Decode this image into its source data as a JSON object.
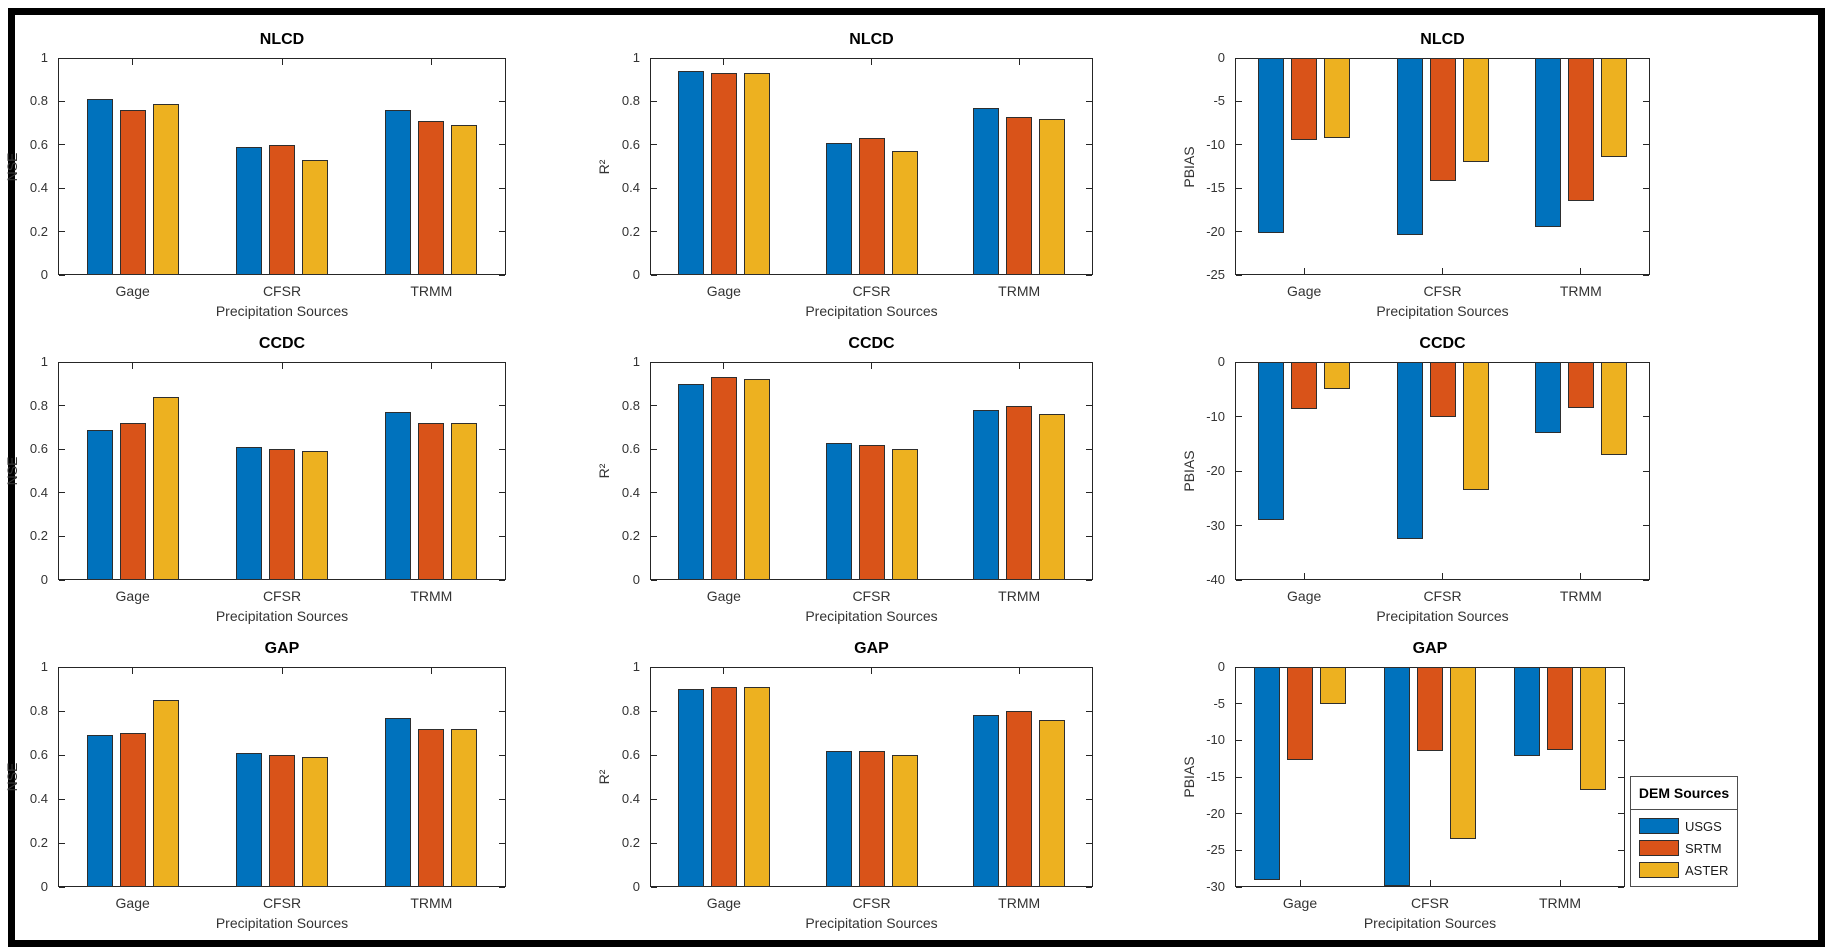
{
  "figure": {
    "background": "#ffffff",
    "frame_color": "#000000",
    "axis_color": "#262626",
    "bar_edge_color": "#2e2e2e"
  },
  "legend": {
    "title": "DEM Sources",
    "position": "outside-bottom-right",
    "entries": [
      {
        "label": "USGS",
        "color": "#0072BD"
      },
      {
        "label": "SRTM",
        "color": "#D95319"
      },
      {
        "label": "ASTER",
        "color": "#EDB120"
      }
    ]
  },
  "chart_data": [
    {
      "type": "bar",
      "title": "NLCD",
      "ylabel": "NSE",
      "xlabel": "Precipitation Sources",
      "categories": [
        "Gage",
        "CFSR",
        "TRMM"
      ],
      "series": [
        {
          "name": "USGS",
          "values": [
            0.81,
            0.59,
            0.76
          ]
        },
        {
          "name": "SRTM",
          "values": [
            0.76,
            0.6,
            0.71
          ]
        },
        {
          "name": "ASTER",
          "values": [
            0.79,
            0.53,
            0.69
          ]
        }
      ],
      "ylim": [
        0,
        1
      ],
      "yticks": [
        0,
        0.2,
        0.4,
        0.6,
        0.8,
        1
      ],
      "grid": false
    },
    {
      "type": "bar",
      "title": "NLCD",
      "ylabel": "R²",
      "xlabel": "Precipitation Sources",
      "categories": [
        "Gage",
        "CFSR",
        "TRMM"
      ],
      "series": [
        {
          "name": "USGS",
          "values": [
            0.94,
            0.61,
            0.77
          ]
        },
        {
          "name": "SRTM",
          "values": [
            0.93,
            0.63,
            0.73
          ]
        },
        {
          "name": "ASTER",
          "values": [
            0.93,
            0.57,
            0.72
          ]
        }
      ],
      "ylim": [
        0,
        1
      ],
      "yticks": [
        0,
        0.2,
        0.4,
        0.6,
        0.8,
        1
      ],
      "grid": false
    },
    {
      "type": "bar",
      "title": "NLCD",
      "ylabel": "PBIAS",
      "xlabel": "Precipitation Sources",
      "categories": [
        "Gage",
        "CFSR",
        "TRMM"
      ],
      "series": [
        {
          "name": "USGS",
          "values": [
            -20.2,
            -20.4,
            -19.5
          ]
        },
        {
          "name": "SRTM",
          "values": [
            -9.5,
            -14.2,
            -16.5
          ]
        },
        {
          "name": "ASTER",
          "values": [
            -9.2,
            -12.0,
            -11.4
          ]
        }
      ],
      "ylim": [
        -25,
        0
      ],
      "yticks": [
        0,
        -5,
        -10,
        -15,
        -20,
        -25
      ],
      "grid": false
    },
    {
      "type": "bar",
      "title": "CCDC",
      "ylabel": "NSE",
      "xlabel": "Precipitation Sources",
      "categories": [
        "Gage",
        "CFSR",
        "TRMM"
      ],
      "series": [
        {
          "name": "USGS",
          "values": [
            0.69,
            0.61,
            0.77
          ]
        },
        {
          "name": "SRTM",
          "values": [
            0.72,
            0.6,
            0.72
          ]
        },
        {
          "name": "ASTER",
          "values": [
            0.84,
            0.59,
            0.72
          ]
        }
      ],
      "ylim": [
        0,
        1
      ],
      "yticks": [
        0,
        0.2,
        0.4,
        0.6,
        0.8,
        1
      ],
      "grid": false
    },
    {
      "type": "bar",
      "title": "CCDC",
      "ylabel": "R²",
      "xlabel": "Precipitation Sources",
      "categories": [
        "Gage",
        "CFSR",
        "TRMM"
      ],
      "series": [
        {
          "name": "USGS",
          "values": [
            0.9,
            0.63,
            0.78
          ]
        },
        {
          "name": "SRTM",
          "values": [
            0.93,
            0.62,
            0.8
          ]
        },
        {
          "name": "ASTER",
          "values": [
            0.92,
            0.6,
            0.76
          ]
        }
      ],
      "ylim": [
        0,
        1
      ],
      "yticks": [
        0,
        0.2,
        0.4,
        0.6,
        0.8,
        1
      ],
      "grid": false
    },
    {
      "type": "bar",
      "title": "CCDC",
      "ylabel": "PBIAS",
      "xlabel": "Precipitation Sources",
      "categories": [
        "Gage",
        "CFSR",
        "TRMM"
      ],
      "series": [
        {
          "name": "USGS",
          "values": [
            -29.0,
            -32.5,
            -13.0
          ]
        },
        {
          "name": "SRTM",
          "values": [
            -8.6,
            -10.0,
            -8.5
          ]
        },
        {
          "name": "ASTER",
          "values": [
            -5.0,
            -23.5,
            -17.0
          ]
        }
      ],
      "ylim": [
        -40,
        0
      ],
      "yticks": [
        0,
        -10,
        -20,
        -30,
        -40
      ],
      "grid": false
    },
    {
      "type": "bar",
      "title": "GAP",
      "ylabel": "NSE",
      "xlabel": "Precipitation Sources",
      "categories": [
        "Gage",
        "CFSR",
        "TRMM"
      ],
      "series": [
        {
          "name": "USGS",
          "values": [
            0.69,
            0.61,
            0.77
          ]
        },
        {
          "name": "SRTM",
          "values": [
            0.7,
            0.6,
            0.72
          ]
        },
        {
          "name": "ASTER",
          "values": [
            0.85,
            0.59,
            0.72
          ]
        }
      ],
      "ylim": [
        0,
        1
      ],
      "yticks": [
        0,
        0.2,
        0.4,
        0.6,
        0.8,
        1
      ],
      "grid": false
    },
    {
      "type": "bar",
      "title": "GAP",
      "ylabel": "R²",
      "xlabel": "Precipitation Sources",
      "categories": [
        "Gage",
        "CFSR",
        "TRMM"
      ],
      "series": [
        {
          "name": "USGS",
          "values": [
            0.9,
            0.62,
            0.78
          ]
        },
        {
          "name": "SRTM",
          "values": [
            0.91,
            0.62,
            0.8
          ]
        },
        {
          "name": "ASTER",
          "values": [
            0.91,
            0.6,
            0.76
          ]
        }
      ],
      "ylim": [
        0,
        1
      ],
      "yticks": [
        0,
        0.2,
        0.4,
        0.6,
        0.8,
        1
      ],
      "grid": false
    },
    {
      "type": "bar",
      "title": "GAP",
      "ylabel": "PBIAS",
      "xlabel": "Precipitation Sources",
      "categories": [
        "Gage",
        "CFSR",
        "TRMM"
      ],
      "series": [
        {
          "name": "USGS",
          "values": [
            -29.0,
            -29.8,
            -12.1
          ]
        },
        {
          "name": "SRTM",
          "values": [
            -12.7,
            -11.5,
            -11.3
          ]
        },
        {
          "name": "ASTER",
          "values": [
            -5.1,
            -23.5,
            -16.8
          ]
        }
      ],
      "ylim": [
        -30,
        0
      ],
      "yticks": [
        0,
        -5,
        -10,
        -15,
        -20,
        -25,
        -30
      ],
      "grid": false
    }
  ]
}
